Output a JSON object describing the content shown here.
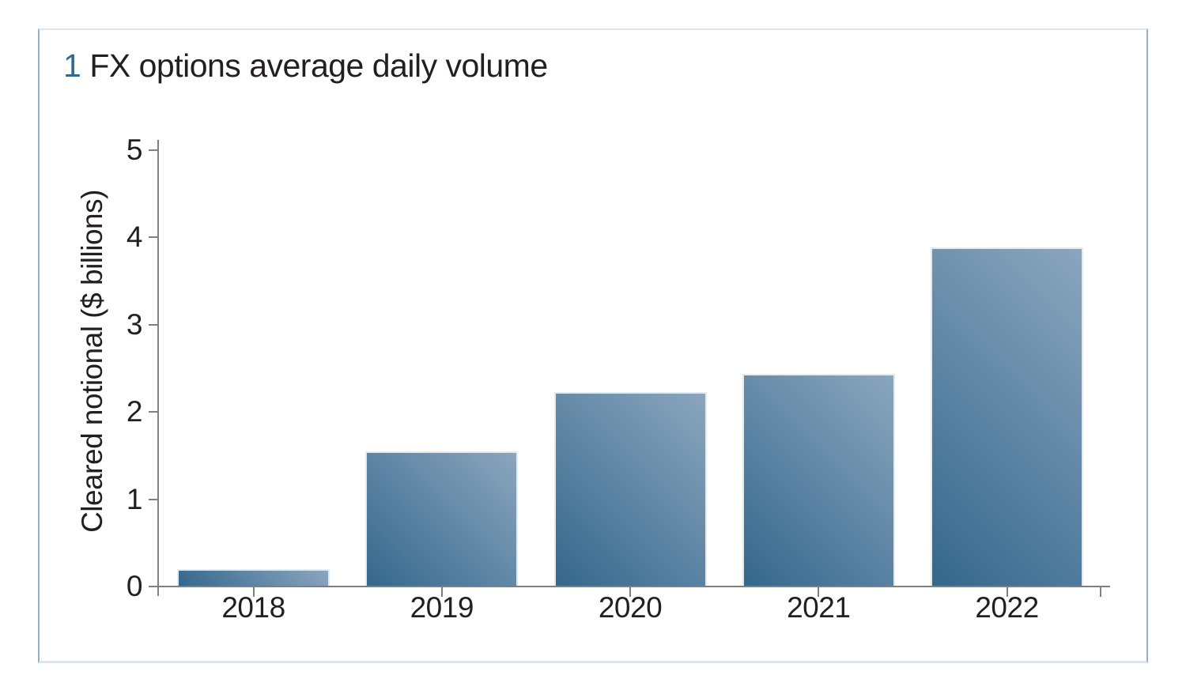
{
  "figure": {
    "number": "1",
    "title": "FX options average daily volume"
  },
  "chart_data": {
    "type": "bar",
    "title": "1 FX options average daily volume",
    "categories": [
      "2018",
      "2019",
      "2020",
      "2021",
      "2022"
    ],
    "values": [
      0.19,
      1.54,
      2.22,
      2.43,
      3.88
    ],
    "xlabel": "",
    "ylabel": "Cleared notional ($ billions)",
    "ylim": [
      0,
      5
    ],
    "yticks": [
      0,
      1,
      2,
      3,
      4,
      5
    ],
    "grid": false,
    "legend_position": "none",
    "colors": {
      "axis": "#7f7f7f",
      "text": "#231f20",
      "figure_number_accent": "#2f6b90",
      "bar_gradient_start": "#35678c",
      "bar_gradient_end": "#8ba6be",
      "bar_edge": "#e2ebf2",
      "card_border_vertical": "#93b1c6",
      "card_border_horizontal": "#dde5ec"
    }
  }
}
